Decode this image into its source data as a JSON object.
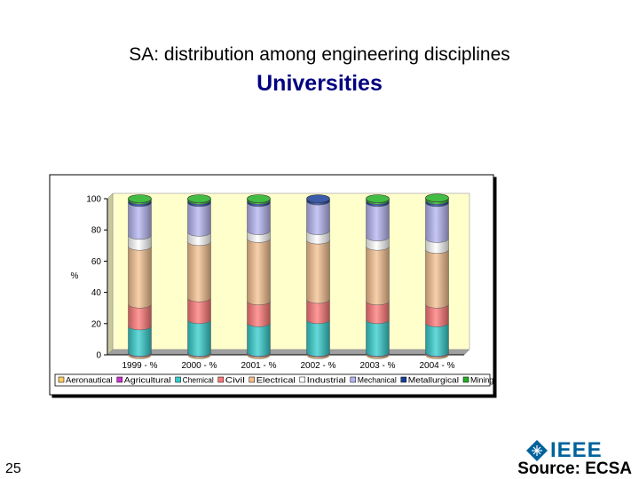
{
  "slide": {
    "title": "SA: distribution among engineering disciplines",
    "subtitle": "Universities",
    "page_number": "25",
    "source": "Source: ECSA",
    "logo_text": "IEEE"
  },
  "chart_data": {
    "type": "bar",
    "stacked": true,
    "style": "3d-cylinder",
    "categories": [
      "1999 - %",
      "2000 - %",
      "2001 - %",
      "2002 - %",
      "2003 - %",
      "2004 - %"
    ],
    "ylabel": "%",
    "xlabel": "",
    "ylim": [
      0,
      100
    ],
    "yticks": [
      0,
      20,
      40,
      60,
      80,
      100
    ],
    "grid": false,
    "legend": "bottom",
    "plot_background": "#ffffcc",
    "series": [
      {
        "name": "Aeronautical",
        "color": "#ffcc66",
        "values": [
          1,
          1,
          1,
          1,
          1,
          1
        ]
      },
      {
        "name": "Agricultural",
        "color": "#cc33cc",
        "values": [
          0.5,
          0.5,
          0.5,
          0.5,
          0.5,
          0.5
        ]
      },
      {
        "name": "Chemical",
        "color": "#33cccc",
        "values": [
          17,
          21,
          19,
          21,
          21,
          19
        ]
      },
      {
        "name": "Civil",
        "color": "#ff7777",
        "values": [
          14,
          14,
          14,
          13,
          12,
          12
        ]
      },
      {
        "name": "Electrical",
        "color": "#f5c08f",
        "values": [
          37,
          36,
          40,
          38,
          35,
          35
        ]
      },
      {
        "name": "Industrial",
        "color": "#ffffff",
        "values": [
          7,
          6,
          5,
          6,
          6,
          7
        ]
      },
      {
        "name": "Mechanical",
        "color": "#b4b4f2",
        "values": [
          21,
          19,
          18,
          19,
          22,
          23
        ]
      },
      {
        "name": "Metallurgical",
        "color": "#1a3e99",
        "values": [
          1.5,
          1.5,
          1.5,
          1.5,
          1.5,
          1.5
        ]
      },
      {
        "name": "Mining",
        "color": "#22b022",
        "values": [
          1,
          1,
          1,
          0,
          1,
          1.5
        ]
      }
    ]
  }
}
